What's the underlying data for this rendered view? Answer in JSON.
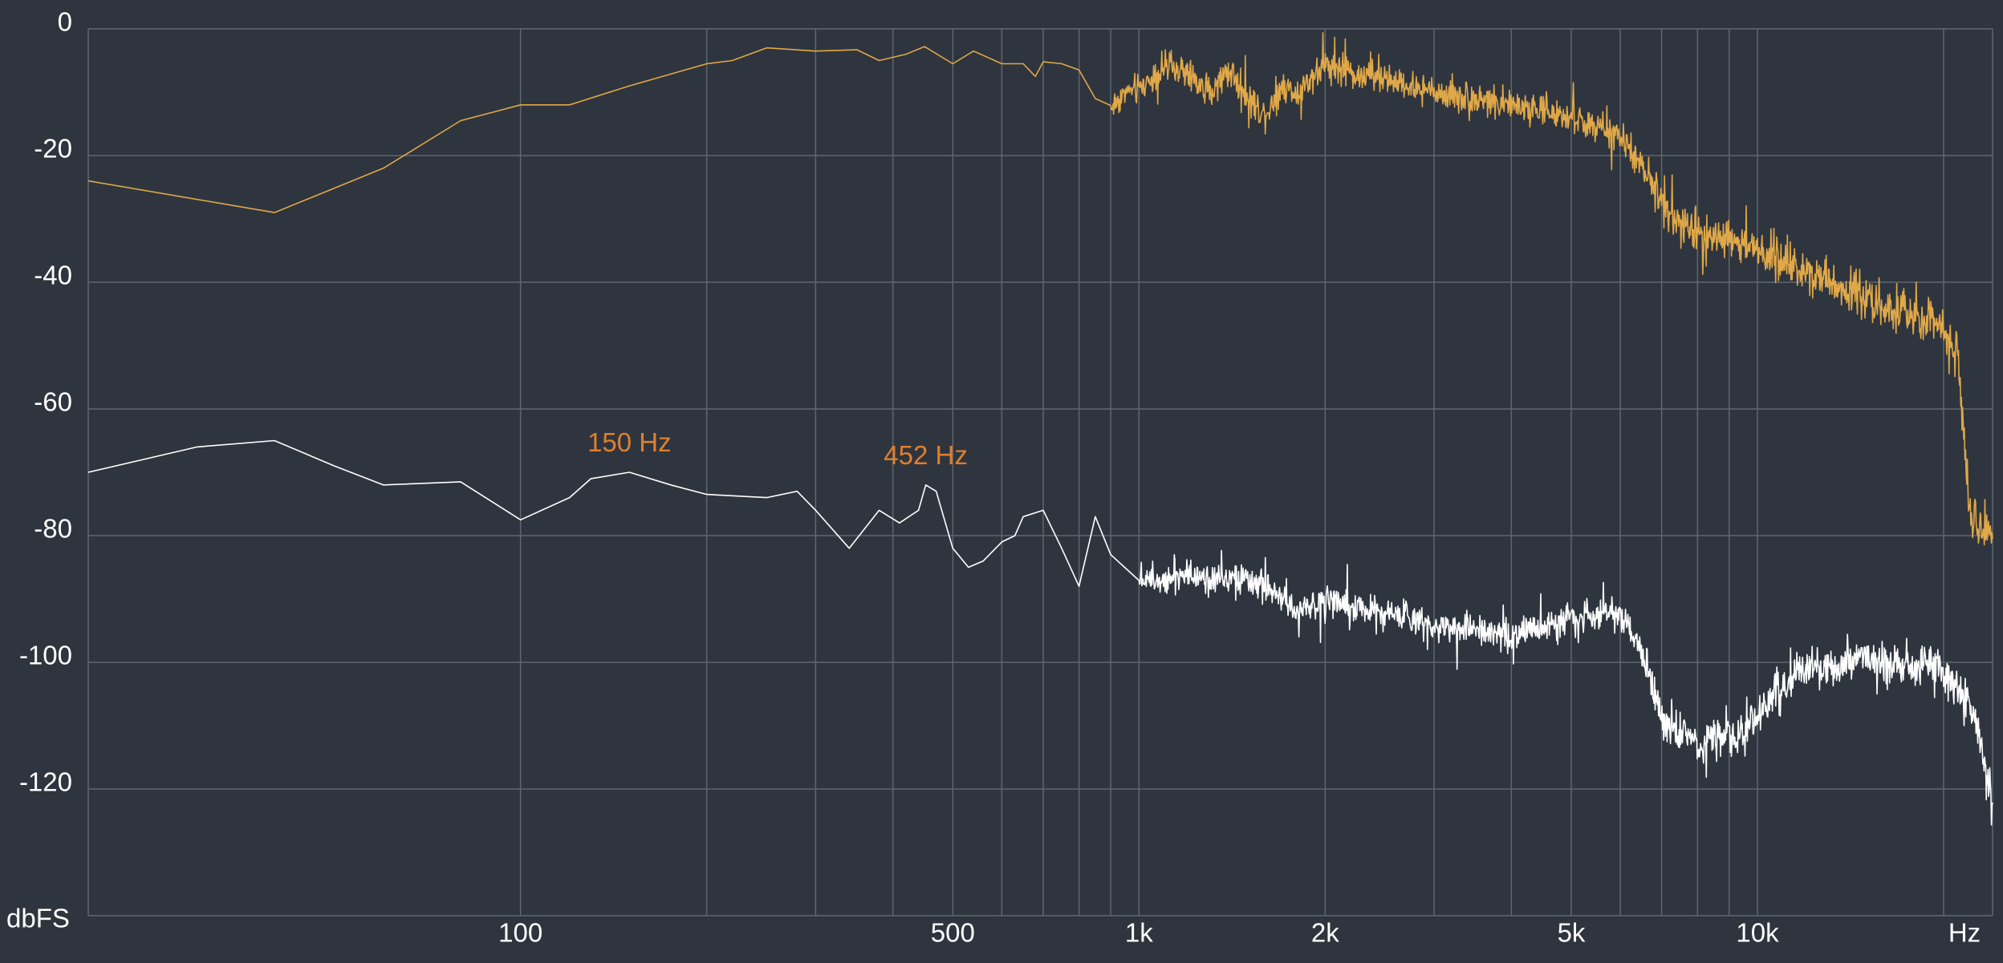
{
  "chart_data": {
    "type": "line",
    "title": "",
    "xlabel": "Hz",
    "ylabel": "dbFS",
    "x_scale": "log",
    "xlim": [
      20,
      24000
    ],
    "ylim": [
      -140,
      0
    ],
    "grid": true,
    "legend": "none",
    "colors": {
      "background": "#2f353e",
      "grid": "#5f6670",
      "text": "#ffffff",
      "annotation": "#e07f2e"
    },
    "y_ticks": [
      {
        "value": 0,
        "label": "0"
      },
      {
        "value": -20,
        "label": "-20"
      },
      {
        "value": -40,
        "label": "-40"
      },
      {
        "value": -60,
        "label": "-60"
      },
      {
        "value": -80,
        "label": "-80"
      },
      {
        "value": -100,
        "label": "-100"
      },
      {
        "value": -120,
        "label": "-120"
      }
    ],
    "x_ticks": [
      {
        "value": 100,
        "label": "100"
      },
      {
        "value": 500,
        "label": "500"
      },
      {
        "value": 1000,
        "label": "1k"
      },
      {
        "value": 2000,
        "label": "2k"
      },
      {
        "value": 5000,
        "label": "5k"
      },
      {
        "value": 10000,
        "label": "10k"
      }
    ],
    "x_gridlines": [
      100,
      200,
      300,
      400,
      500,
      600,
      700,
      800,
      900,
      1000,
      2000,
      3000,
      4000,
      5000,
      6000,
      7000,
      8000,
      9000,
      10000,
      20000
    ],
    "annotations": [
      {
        "label": "150 Hz",
        "x": 150,
        "y": -70
      },
      {
        "label": "452 Hz",
        "x": 452,
        "y": -72
      }
    ],
    "series": [
      {
        "color": "#e0a848",
        "noise_from_hz": 900,
        "points": [
          [
            20,
            -24
          ],
          [
            40,
            -29
          ],
          [
            60,
            -22
          ],
          [
            80,
            -14.5
          ],
          [
            100,
            -12
          ],
          [
            120,
            -12
          ],
          [
            150,
            -9
          ],
          [
            200,
            -5.5
          ],
          [
            220,
            -5
          ],
          [
            250,
            -3
          ],
          [
            300,
            -3.5
          ],
          [
            350,
            -3.3
          ],
          [
            380,
            -5
          ],
          [
            420,
            -4
          ],
          [
            450,
            -2.8
          ],
          [
            500,
            -5.5
          ],
          [
            540,
            -3.5
          ],
          [
            600,
            -5.5
          ],
          [
            650,
            -5.5
          ],
          [
            680,
            -7.5
          ],
          [
            700,
            -5.2
          ],
          [
            750,
            -5.5
          ],
          [
            800,
            -6.5
          ],
          [
            850,
            -11
          ],
          [
            900,
            -12.5
          ],
          [
            950,
            -10
          ],
          [
            1000,
            -9.5
          ],
          [
            1100,
            -6
          ],
          [
            1200,
            -7
          ],
          [
            1300,
            -10
          ],
          [
            1400,
            -6.5
          ],
          [
            1500,
            -11
          ],
          [
            1600,
            -13.5
          ],
          [
            1700,
            -9
          ],
          [
            1800,
            -10
          ],
          [
            2000,
            -5.5
          ],
          [
            2200,
            -7
          ],
          [
            2500,
            -8
          ],
          [
            3000,
            -10
          ],
          [
            3500,
            -11
          ],
          [
            4000,
            -12
          ],
          [
            5000,
            -14
          ],
          [
            6000,
            -17
          ],
          [
            6500,
            -22
          ],
          [
            7000,
            -27
          ],
          [
            7500,
            -31
          ],
          [
            8000,
            -32
          ],
          [
            9000,
            -33
          ],
          [
            10000,
            -35
          ],
          [
            12000,
            -38
          ],
          [
            14000,
            -41
          ],
          [
            17000,
            -45
          ],
          [
            20000,
            -47
          ],
          [
            21000,
            -50
          ],
          [
            21500,
            -62
          ],
          [
            22000,
            -76
          ],
          [
            23000,
            -78
          ],
          [
            24000,
            -79
          ]
        ]
      },
      {
        "color": "#ffffff",
        "noise_from_hz": 1000,
        "points": [
          [
            20,
            -70
          ],
          [
            30,
            -66
          ],
          [
            40,
            -65
          ],
          [
            50,
            -69
          ],
          [
            60,
            -72
          ],
          [
            80,
            -71.5
          ],
          [
            100,
            -77.5
          ],
          [
            120,
            -74
          ],
          [
            130,
            -71
          ],
          [
            150,
            -70
          ],
          [
            175,
            -72
          ],
          [
            200,
            -73.5
          ],
          [
            250,
            -74
          ],
          [
            280,
            -73
          ],
          [
            300,
            -76
          ],
          [
            340,
            -82
          ],
          [
            380,
            -76
          ],
          [
            410,
            -78
          ],
          [
            440,
            -76
          ],
          [
            452,
            -72
          ],
          [
            470,
            -73
          ],
          [
            500,
            -82
          ],
          [
            530,
            -85
          ],
          [
            560,
            -84
          ],
          [
            600,
            -81
          ],
          [
            630,
            -80
          ],
          [
            650,
            -77
          ],
          [
            700,
            -76
          ],
          [
            750,
            -82
          ],
          [
            800,
            -88
          ],
          [
            850,
            -77
          ],
          [
            900,
            -83
          ],
          [
            1000,
            -87
          ],
          [
            1200,
            -86
          ],
          [
            1400,
            -87
          ],
          [
            1600,
            -88
          ],
          [
            1800,
            -92
          ],
          [
            2000,
            -90
          ],
          [
            2500,
            -92
          ],
          [
            3000,
            -94
          ],
          [
            3500,
            -95
          ],
          [
            4000,
            -96
          ],
          [
            5000,
            -93
          ],
          [
            6000,
            -92
          ],
          [
            6500,
            -98
          ],
          [
            7000,
            -109
          ],
          [
            8000,
            -113
          ],
          [
            9000,
            -112
          ],
          [
            10000,
            -109
          ],
          [
            11000,
            -104
          ],
          [
            12000,
            -101
          ],
          [
            14000,
            -100
          ],
          [
            17000,
            -100
          ],
          [
            20000,
            -101
          ],
          [
            21000,
            -104
          ],
          [
            22000,
            -107
          ],
          [
            23000,
            -112
          ],
          [
            24000,
            -124
          ]
        ]
      }
    ]
  }
}
